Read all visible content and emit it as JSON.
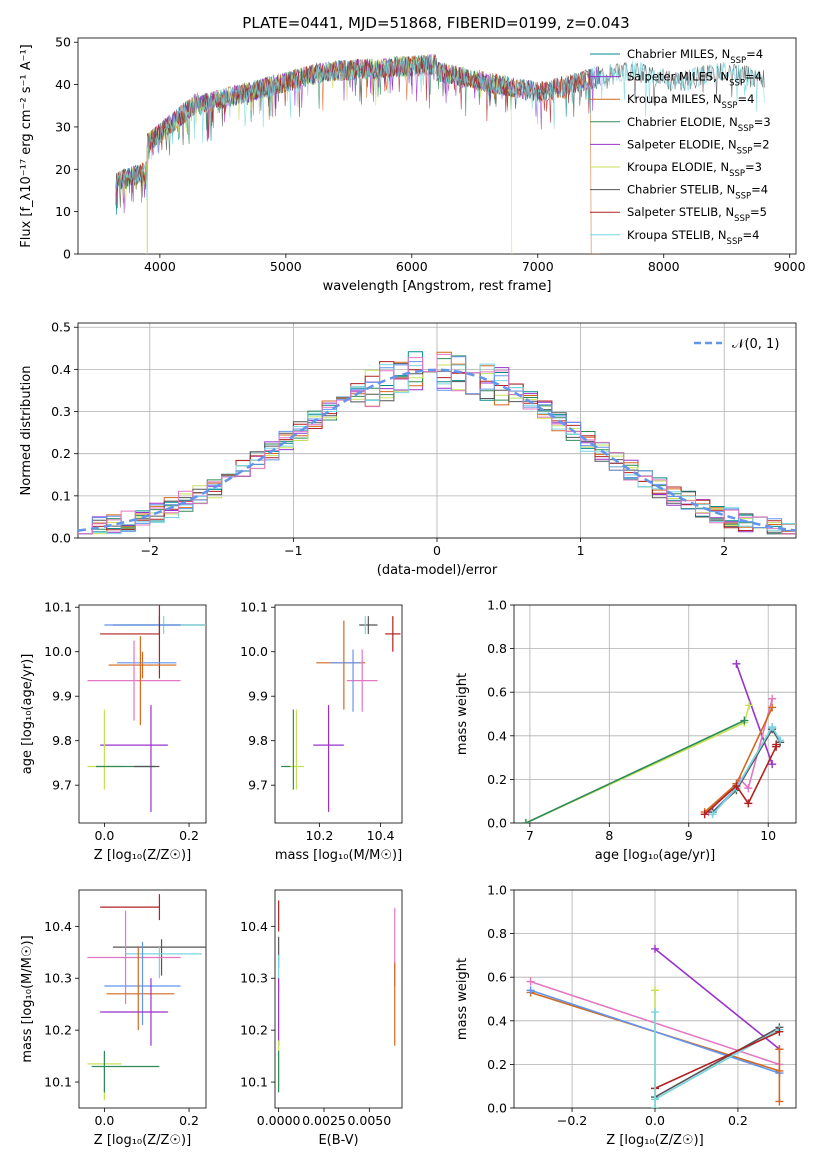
{
  "figure": {
    "title": "PLATE=0441, MJD=51868, FIBERID=0199, z=0.043"
  },
  "chart_data": [
    {
      "id": "spectrum",
      "type": "line",
      "xlabel": "wavelength [Angstrom, rest frame]",
      "ylabel": "Flux [f_λ10⁻¹⁷ erg cm⁻² s⁻¹ A⁻¹]",
      "xlim": [
        3350,
        9050
      ],
      "ylim": [
        0,
        51
      ],
      "xticks": [
        4000,
        5000,
        6000,
        7000,
        8000,
        9000
      ],
      "yticks": [
        0,
        10,
        20,
        30,
        40,
        50
      ],
      "grid": false,
      "legend_position": "top-right",
      "series": [
        {
          "name": "Chabrier MILES, N_SSP=4",
          "color": "#008B8B",
          "x_range": [
            3650,
            7500
          ],
          "cutoff": null
        },
        {
          "name": "Salpeter MILES, N_SSP=4",
          "color": "#9932CC",
          "x_range": [
            3650,
            7500
          ],
          "cutoff": null
        },
        {
          "name": "Kroupa MILES, N_SSP=4",
          "color": "#D2691E",
          "x_range": [
            3650,
            7500
          ],
          "cutoff": 7420
        },
        {
          "name": "Chabrier ELODIE, N_SSP=3",
          "color": "#2E8B57",
          "x_range": [
            3650,
            6800
          ],
          "cutoff": null
        },
        {
          "name": "Salpeter ELODIE, N_SSP=2",
          "color": "#9932CC",
          "x_range": [
            3650,
            6800
          ],
          "cutoff": null
        },
        {
          "name": "Kroupa ELODIE, N_SSP=3",
          "color": "#C5E15A",
          "x_range": [
            3650,
            6800
          ],
          "cutoff": 6790
        },
        {
          "name": "Chabrier STELIB, N_SSP=4",
          "color": "#555555",
          "x_range": [
            3650,
            8800
          ],
          "cutoff": null
        },
        {
          "name": "Salpeter STELIB, N_SSP=5",
          "color": "#B22222",
          "x_range": [
            3650,
            7420
          ],
          "cutoff": 7420
        },
        {
          "name": "Kroupa STELIB, N_SSP=4",
          "color": "#79D6E0",
          "x_range": [
            3650,
            8800
          ],
          "cutoff": null
        }
      ]
    },
    {
      "id": "residual-histogram",
      "type": "bar",
      "xlabel": "(data-model)/error",
      "ylabel": "Normed distribution",
      "xlim": [
        -2.5,
        2.5
      ],
      "ylim": [
        0,
        0.51
      ],
      "xticks": [
        -2,
        -1,
        0,
        1,
        2
      ],
      "yticks": [
        0.0,
        0.1,
        0.2,
        0.3,
        0.4,
        0.5
      ],
      "grid": true,
      "legend_position": "top-right",
      "legend": [
        "𝒩(0, 1)"
      ],
      "bin_width": 0.1,
      "colors": [
        "#008B8B",
        "#9932CC",
        "#D2691E",
        "#2E8B57",
        "#C5E15A",
        "#555555",
        "#B22222",
        "#79D6E0",
        "#6495ED",
        "#E377C2"
      ],
      "reference_curve": {
        "name": "𝒩(0, 1)",
        "color": "#6495ED",
        "mean": 0,
        "sigma": 1
      }
    },
    {
      "id": "age-vs-z",
      "type": "scatter",
      "xlabel": "Z [log₁₀(Z/Z☉)]",
      "ylabel": "age  [log₁₀(age/yr)]",
      "xlim": [
        -0.06,
        0.24
      ],
      "ylim": [
        9.615,
        10.105
      ],
      "xticks": [
        0.0,
        0.2
      ],
      "yticks": [
        9.7,
        9.8,
        9.9,
        10.0,
        10.1
      ],
      "points": [
        {
          "x": 0.13,
          "xerr": 0.11,
          "y": 10.06,
          "yerr": 0.02,
          "color": "#555555"
        },
        {
          "x": 0.14,
          "xerr": 0.1,
          "y": 10.06,
          "yerr": 0.02,
          "color": "#79D6E0"
        },
        {
          "x": 0.09,
          "xerr": 0.09,
          "y": 10.06,
          "yerr": 0.0,
          "color": "#6495ED"
        },
        {
          "x": 0.06,
          "xerr": 0.07,
          "y": 10.04,
          "yerr": 0.0,
          "color": "#B22222"
        },
        {
          "x": 0.13,
          "xerr": 0.0,
          "y": 10.04,
          "yerr": 0.1,
          "color": "#B22222"
        },
        {
          "x": 0.09,
          "xerr": 0.08,
          "y": 9.97,
          "yerr": 0.03,
          "color": "#D2691E"
        },
        {
          "x": 0.1,
          "xerr": 0.07,
          "y": 9.975,
          "yerr": 0.0,
          "color": "#6495ED"
        },
        {
          "x": 0.07,
          "xerr": 0.11,
          "y": 9.935,
          "yerr": 0.09,
          "color": "#E377C2"
        },
        {
          "x": 0.085,
          "xerr": 0.0,
          "y": 9.935,
          "yerr": 0.1,
          "color": "#D2691E"
        },
        {
          "x": 0.07,
          "xerr": 0.08,
          "y": 9.79,
          "yerr": 0.0,
          "color": "#9932CC"
        },
        {
          "x": 0.11,
          "xerr": 0.0,
          "y": 9.76,
          "yerr": 0.12,
          "color": "#9932CC"
        },
        {
          "x": 0.0,
          "xerr": 0.04,
          "y": 9.742,
          "yerr": 0.0,
          "color": "#C5E15A"
        },
        {
          "x": 0.0,
          "xerr": 0.0,
          "y": 9.78,
          "yerr": 0.09,
          "color": "#C5E15A"
        },
        {
          "x": 0.05,
          "xerr": 0.07,
          "y": 9.742,
          "yerr": 0.0,
          "color": "#2E8B57"
        },
        {
          "x": 0.1,
          "xerr": 0.03,
          "y": 9.742,
          "yerr": 0.0,
          "color": "#555555"
        }
      ]
    },
    {
      "id": "age-vs-mass",
      "type": "scatter",
      "xlabel": "mass [log₁₀(M/M☉)]",
      "ylabel": "",
      "xlim": [
        10.055,
        10.47
      ],
      "ylim": [
        9.615,
        10.105
      ],
      "xticks": [
        10.2,
        10.4
      ],
      "yticks": [
        9.7,
        9.8,
        9.9,
        10.0,
        10.1
      ],
      "points": [
        {
          "x": 10.36,
          "xerr": 0.03,
          "y": 10.06,
          "yerr": 0.02,
          "color": "#555555"
        },
        {
          "x": 10.35,
          "xerr": 0.0,
          "y": 10.06,
          "yerr": 0.02,
          "color": "#79D6E0"
        },
        {
          "x": 10.44,
          "xerr": 0.025,
          "y": 10.04,
          "yerr": 0.04,
          "color": "#B22222"
        },
        {
          "x": 10.28,
          "xerr": 0.0,
          "y": 9.97,
          "yerr": 0.1,
          "color": "#D2691E"
        },
        {
          "x": 10.27,
          "xerr": 0.08,
          "y": 9.975,
          "yerr": 0.0,
          "color": "#D2691E"
        },
        {
          "x": 10.285,
          "xerr": 0.05,
          "y": 9.975,
          "yerr": 0.0,
          "color": "#6495ED"
        },
        {
          "x": 10.34,
          "xerr": 0.05,
          "y": 9.935,
          "yerr": 0.07,
          "color": "#E377C2"
        },
        {
          "x": 10.31,
          "xerr": 0.0,
          "y": 9.935,
          "yerr": 0.07,
          "color": "#6495ED"
        },
        {
          "x": 10.23,
          "xerr": 0.05,
          "y": 9.79,
          "yerr": 0.0,
          "color": "#9932CC"
        },
        {
          "x": 10.23,
          "xerr": 0.0,
          "y": 9.76,
          "yerr": 0.12,
          "color": "#9932CC"
        },
        {
          "x": 10.12,
          "xerr": 0.03,
          "y": 9.742,
          "yerr": 0.0,
          "color": "#C5E15A"
        },
        {
          "x": 10.125,
          "xerr": 0.0,
          "y": 9.78,
          "yerr": 0.09,
          "color": "#C5E15A"
        },
        {
          "x": 10.115,
          "xerr": 0.0,
          "y": 9.78,
          "yerr": 0.09,
          "color": "#2E8B57"
        },
        {
          "x": 10.09,
          "xerr": 0.015,
          "y": 9.742,
          "yerr": 0.0,
          "color": "#2E8B57"
        }
      ]
    },
    {
      "id": "massweight-vs-age",
      "type": "line",
      "xlabel": "age  [log₁₀(age/yr)]",
      "ylabel": "mass weight",
      "xlim": [
        6.8,
        10.35
      ],
      "ylim": [
        0.0,
        1.0
      ],
      "xticks": [
        7,
        8,
        9,
        10
      ],
      "yticks": [
        0.0,
        0.2,
        0.4,
        0.6,
        0.8,
        1.0
      ],
      "grid": true,
      "series": [
        {
          "color": "#9932CC",
          "x": [
            9.6,
            10.05
          ],
          "y": [
            0.73,
            0.27
          ]
        },
        {
          "color": "#C5E15A",
          "x": [
            6.95,
            9.7,
            9.76
          ],
          "y": [
            0.0,
            0.46,
            0.54
          ]
        },
        {
          "color": "#2E8B57",
          "x": [
            6.95,
            9.7
          ],
          "y": [
            0.0,
            0.47
          ]
        },
        {
          "color": "#E377C2",
          "x": [
            9.25,
            9.65,
            9.75,
            10.05
          ],
          "y": [
            0.05,
            0.2,
            0.16,
            0.57
          ]
        },
        {
          "color": "#D2691E",
          "x": [
            9.2,
            9.6,
            10.05
          ],
          "y": [
            0.05,
            0.18,
            0.53
          ]
        },
        {
          "color": "#6495ED",
          "x": [
            9.3,
            9.6,
            10.05,
            10.15
          ],
          "y": [
            0.05,
            0.16,
            0.44,
            0.37
          ]
        },
        {
          "color": "#555555",
          "x": [
            9.3,
            9.6,
            10.05,
            10.15
          ],
          "y": [
            0.05,
            0.15,
            0.43,
            0.37
          ]
        },
        {
          "color": "#79D6E0",
          "x": [
            9.3,
            9.6,
            10.05,
            10.15
          ],
          "y": [
            0.04,
            0.16,
            0.44,
            0.38
          ]
        },
        {
          "color": "#B22222",
          "x": [
            9.2,
            9.6,
            9.75,
            10.1,
            10.1
          ],
          "y": [
            0.04,
            0.17,
            0.09,
            0.35,
            0.36
          ]
        }
      ]
    },
    {
      "id": "mass-vs-z",
      "type": "scatter",
      "xlabel": "Z [log₁₀(Z/Z☉)]",
      "ylabel": "mass [log₁₀(M/M☉)]",
      "xlim": [
        -0.06,
        0.24
      ],
      "ylim": [
        10.05,
        10.47
      ],
      "xticks": [
        0.0,
        0.2
      ],
      "yticks": [
        10.1,
        10.2,
        10.3,
        10.4
      ],
      "points": [
        {
          "x": 0.06,
          "xerr": 0.07,
          "y": 10.437,
          "yerr": 0.0,
          "color": "#B22222"
        },
        {
          "x": 0.13,
          "xerr": 0.0,
          "y": 10.437,
          "yerr": 0.025,
          "color": "#B22222"
        },
        {
          "x": 0.13,
          "xerr": 0.11,
          "y": 10.36,
          "yerr": 0.0,
          "color": "#555555"
        },
        {
          "x": 0.135,
          "xerr": 0.0,
          "y": 10.34,
          "yerr": 0.035,
          "color": "#555555"
        },
        {
          "x": 0.14,
          "xerr": 0.09,
          "y": 10.347,
          "yerr": 0.0,
          "color": "#79D6E0"
        },
        {
          "x": 0.13,
          "xerr": 0.0,
          "y": 10.33,
          "yerr": 0.03,
          "color": "#79D6E0"
        },
        {
          "x": 0.07,
          "xerr": 0.11,
          "y": 10.34,
          "yerr": 0.0,
          "color": "#E377C2"
        },
        {
          "x": 0.05,
          "xerr": 0.0,
          "y": 10.34,
          "yerr": 0.09,
          "color": "#E377C2"
        },
        {
          "x": 0.09,
          "xerr": 0.09,
          "y": 10.285,
          "yerr": 0.0,
          "color": "#6495ED"
        },
        {
          "x": 0.085,
          "xerr": 0.08,
          "y": 10.27,
          "yerr": 0.0,
          "color": "#D2691E"
        },
        {
          "x": 0.08,
          "xerr": 0.0,
          "y": 10.28,
          "yerr": 0.08,
          "color": "#D2691E"
        },
        {
          "x": 0.09,
          "xerr": 0.0,
          "y": 10.29,
          "yerr": 0.08,
          "color": "#6495ED"
        },
        {
          "x": 0.07,
          "xerr": 0.08,
          "y": 10.235,
          "yerr": 0.0,
          "color": "#9932CC"
        },
        {
          "x": 0.11,
          "xerr": 0.0,
          "y": 10.235,
          "yerr": 0.065,
          "color": "#9932CC"
        },
        {
          "x": 0.0,
          "xerr": 0.04,
          "y": 10.135,
          "yerr": 0.0,
          "color": "#C5E15A"
        },
        {
          "x": 0.0,
          "xerr": 0.0,
          "y": 10.11,
          "yerr": 0.045,
          "color": "#C5E15A"
        },
        {
          "x": 0.05,
          "xerr": 0.08,
          "y": 10.13,
          "yerr": 0.0,
          "color": "#2E8B57"
        },
        {
          "x": 0.0,
          "xerr": 0.0,
          "y": 10.12,
          "yerr": 0.04,
          "color": "#2E8B57"
        }
      ]
    },
    {
      "id": "mass-vs-ebv",
      "type": "scatter",
      "xlabel": "E(B-V)",
      "ylabel": "",
      "xlim": [
        -0.0002,
        0.0068
      ],
      "ylim": [
        10.05,
        10.47
      ],
      "xticks": [
        0.0,
        0.0025,
        0.005
      ],
      "xtick_labels": [
        "0.0000",
        "0.0025",
        "0.0050"
      ],
      "yticks": [
        10.1,
        10.2,
        10.3,
        10.4
      ],
      "points": [
        {
          "x": 0.0,
          "xerr": 0.0,
          "y": 10.42,
          "yerr": 0.03,
          "color": "#B22222"
        },
        {
          "x": 0.0,
          "xerr": 0.0,
          "y": 10.35,
          "yerr": 0.03,
          "color": "#555555"
        },
        {
          "x": 0.0,
          "xerr": 0.0,
          "y": 10.31,
          "yerr": 0.035,
          "color": "#79D6E0"
        },
        {
          "x": 0.0,
          "xerr": 0.0,
          "y": 10.235,
          "yerr": 0.065,
          "color": "#9932CC"
        },
        {
          "x": 0.0,
          "xerr": 0.0,
          "y": 10.135,
          "yerr": 0.045,
          "color": "#C5E15A"
        },
        {
          "x": 0.0,
          "xerr": 0.0,
          "y": 10.12,
          "yerr": 0.04,
          "color": "#2E8B57"
        },
        {
          "x": 0.0064,
          "xerr": 0.0,
          "y": 10.36,
          "yerr": 0.075,
          "color": "#E377C2"
        },
        {
          "x": 0.0064,
          "xerr": 0.0,
          "y": 10.25,
          "yerr": 0.08,
          "color": "#D2691E"
        }
      ]
    },
    {
      "id": "massweight-vs-z",
      "type": "line",
      "xlabel": "Z [log₁₀(Z/Z☉)]",
      "ylabel": "mass weight",
      "xlim": [
        -0.34,
        0.34
      ],
      "ylim": [
        0.0,
        1.0
      ],
      "xticks": [
        -0.2,
        0.0,
        0.2
      ],
      "yticks": [
        0.0,
        0.2,
        0.4,
        0.6,
        0.8,
        1.0
      ],
      "grid": true,
      "series": [
        {
          "color": "#9932CC",
          "x": [
            0.0,
            0.3
          ],
          "y": [
            0.73,
            0.27
          ]
        },
        {
          "color": "#E377C2",
          "x": [
            -0.3,
            0.3
          ],
          "y": [
            0.58,
            0.2
          ]
        },
        {
          "color": "#D2691E",
          "x": [
            -0.3,
            0.3
          ],
          "y": [
            0.53,
            0.17
          ]
        },
        {
          "color": "#6495ED",
          "x": [
            -0.3,
            0.3
          ],
          "y": [
            0.54,
            0.16
          ]
        },
        {
          "color": "#555555",
          "x": [
            0.0,
            0.3
          ],
          "y": [
            0.05,
            0.37
          ]
        },
        {
          "color": "#79D6E0",
          "x": [
            0.0,
            0.3
          ],
          "y": [
            0.04,
            0.36
          ]
        },
        {
          "color": "#B22222",
          "x": [
            0.0,
            0.3
          ],
          "y": [
            0.09,
            0.35
          ]
        },
        {
          "color": "#C5E15A",
          "x": [
            0.0,
            0.0
          ],
          "y": [
            0.0,
            0.54
          ]
        },
        {
          "color": "#79D6E0",
          "x": [
            0.0,
            0.0
          ],
          "y": [
            0.0,
            0.44
          ]
        },
        {
          "color": "#D2691E",
          "x": [
            0.3,
            0.3
          ],
          "y": [
            0.03,
            0.27
          ]
        }
      ]
    }
  ]
}
